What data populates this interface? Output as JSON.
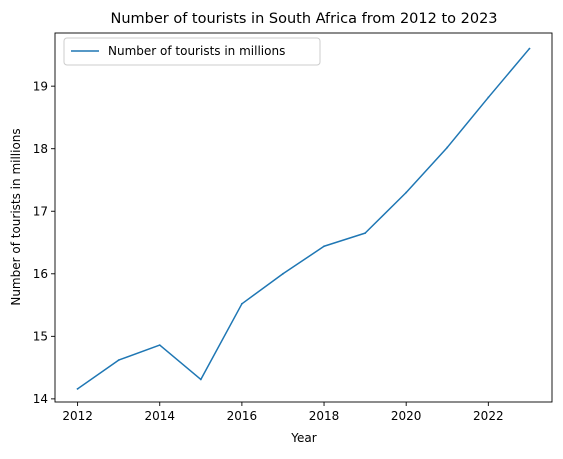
{
  "chart_data": {
    "type": "line",
    "title": "Number of tourists in South Africa from 2012 to 2023",
    "xlabel": "Year",
    "ylabel": "Number of tourists in millions",
    "x": [
      2012,
      2013,
      2014,
      2015,
      2016,
      2017,
      2018,
      2019,
      2020,
      2021,
      2022,
      2023
    ],
    "series": [
      {
        "name": "Number of tourists in millions",
        "color": "#1f77b4",
        "values": [
          14.16,
          14.62,
          14.86,
          14.31,
          15.52,
          16.0,
          16.44,
          16.65,
          17.3,
          18.02,
          18.82,
          19.6
        ]
      }
    ],
    "xlim": [
      2011.45,
      2023.55
    ],
    "ylim": [
      13.95,
      19.85
    ],
    "xticks": [
      2012,
      2014,
      2016,
      2018,
      2020,
      2022
    ],
    "yticks": [
      14,
      15,
      16,
      17,
      18,
      19
    ],
    "grid": false,
    "legend_position": "upper-left"
  }
}
